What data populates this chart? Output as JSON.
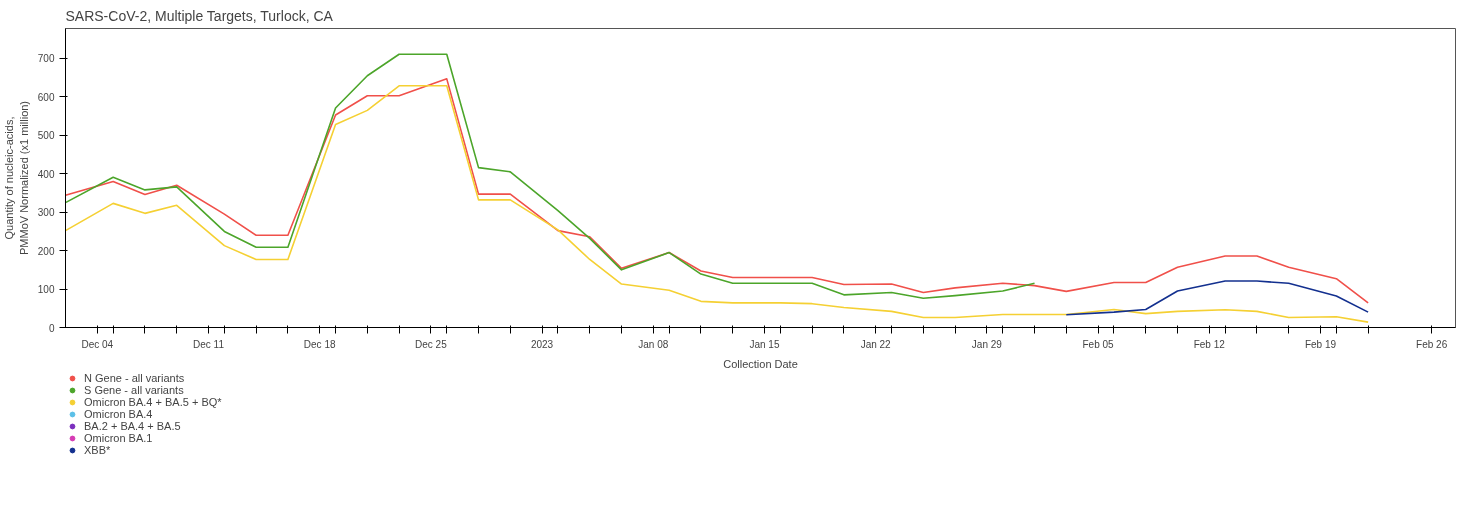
{
  "chart_data": {
    "type": "line",
    "title": "SARS-CoV-2, Multiple Targets, Turlock, CA",
    "xlabel": "Collection Date",
    "ylabel": "Quantity of nucleic-acids,\nPMMoV Normalized (x1 million)",
    "x": [
      "2022-12-02",
      "2022-12-05",
      "2022-12-07",
      "2022-12-09",
      "2022-12-12",
      "2022-12-14",
      "2022-12-16",
      "2022-12-19",
      "2022-12-21",
      "2022-12-23",
      "2022-12-26",
      "2022-12-28",
      "2022-12-30",
      "2023-01-02",
      "2023-01-04",
      "2023-01-06",
      "2023-01-09",
      "2023-01-11",
      "2023-01-13",
      "2023-01-16",
      "2023-01-18",
      "2023-01-20",
      "2023-01-23",
      "2023-01-25",
      "2023-01-27",
      "2023-01-30",
      "2023-02-01",
      "2023-02-03",
      "2023-02-06",
      "2023-02-08",
      "2023-02-10",
      "2023-02-13",
      "2023-02-15",
      "2023-02-17",
      "2023-02-20",
      "2023-02-22"
    ],
    "series": [
      {
        "name": "N Gene - all variants",
        "color": "#f0504a",
        "values": [
          344,
          380,
          346,
          370,
          295,
          240,
          240,
          553,
          603,
          603,
          647,
          347,
          347,
          252,
          236,
          154,
          195,
          147,
          130,
          130,
          130,
          112,
          113,
          91,
          103,
          115,
          109,
          94,
          117,
          117,
          157,
          186,
          186,
          157,
          127,
          64
        ]
      },
      {
        "name": "S Gene - all variants",
        "color": "#4ca52a",
        "values": [
          325,
          391,
          358,
          366,
          250,
          209,
          209,
          571,
          655,
          711,
          711,
          416,
          405,
          304,
          232,
          150,
          195,
          139,
          115,
          115,
          115,
          85,
          91,
          76,
          83,
          95,
          115,
          null,
          null,
          null,
          null,
          null,
          null,
          null,
          null,
          null
        ]
      },
      {
        "name": "Omicron BA.4 + BA.5 + BQ*",
        "color": "#f5d033",
        "values": [
          252,
          323,
          297,
          318,
          213,
          177,
          177,
          528,
          565,
          629,
          629,
          332,
          332,
          254,
          177,
          113,
          97,
          68,
          64,
          64,
          62,
          52,
          42,
          26,
          26,
          34,
          34,
          34,
          47,
          36,
          42,
          46,
          42,
          26,
          28,
          14
        ]
      },
      {
        "name": "Omicron BA.4",
        "color": "#5bc0e8",
        "values": [
          null,
          null,
          null,
          null,
          null,
          null,
          null,
          null,
          null,
          null,
          null,
          null,
          null,
          null,
          null,
          null,
          null,
          null,
          null,
          null,
          null,
          null,
          null,
          null,
          null,
          null,
          null,
          null,
          null,
          null,
          null,
          null,
          null,
          null,
          null,
          null
        ]
      },
      {
        "name": "BA.2 + BA.4 + BA.5",
        "color": "#7b2fbe",
        "values": [
          null,
          null,
          null,
          null,
          null,
          null,
          null,
          null,
          null,
          null,
          null,
          null,
          null,
          null,
          null,
          null,
          null,
          null,
          null,
          null,
          null,
          null,
          null,
          null,
          null,
          null,
          null,
          null,
          null,
          null,
          null,
          null,
          null,
          null,
          null,
          null
        ]
      },
      {
        "name": "Omicron BA.1",
        "color": "#d63cb4",
        "values": [
          null,
          null,
          null,
          null,
          null,
          null,
          null,
          null,
          null,
          null,
          null,
          null,
          null,
          null,
          null,
          null,
          null,
          null,
          null,
          null,
          null,
          null,
          null,
          null,
          null,
          null,
          null,
          null,
          null,
          null,
          null,
          null,
          null,
          null,
          null,
          null
        ]
      },
      {
        "name": "XBB*",
        "color": "#13308f",
        "values": [
          null,
          null,
          null,
          null,
          null,
          null,
          null,
          null,
          null,
          null,
          null,
          null,
          null,
          null,
          null,
          null,
          null,
          null,
          null,
          null,
          null,
          null,
          null,
          null,
          null,
          null,
          null,
          33,
          40,
          47,
          95,
          121,
          121,
          115,
          82,
          40
        ]
      }
    ],
    "xlim": [
      "2022-12-02",
      "2023-02-27T12:00"
    ],
    "xticks": [
      {
        "value": "2022-12-04",
        "label": "Dec 04"
      },
      {
        "value": "2022-12-11",
        "label": "Dec 11"
      },
      {
        "value": "2022-12-18",
        "label": "Dec 18"
      },
      {
        "value": "2022-12-25",
        "label": "Dec 25"
      },
      {
        "value": "2023-01-01",
        "label": "2023"
      },
      {
        "value": "2023-01-08",
        "label": "Jan 08"
      },
      {
        "value": "2023-01-15",
        "label": "Jan 15"
      },
      {
        "value": "2023-01-22",
        "label": "Jan 22"
      },
      {
        "value": "2023-01-29",
        "label": "Jan 29"
      },
      {
        "value": "2023-02-05",
        "label": "Feb 05"
      },
      {
        "value": "2023-02-12",
        "label": "Feb 12"
      },
      {
        "value": "2023-02-19",
        "label": "Feb 19"
      },
      {
        "value": "2023-02-26",
        "label": "Feb 26"
      },
      {
        "value": "2022-12-05",
        "label": null
      },
      {
        "value": "2022-12-07",
        "label": null
      },
      {
        "value": "2022-12-09",
        "label": null
      },
      {
        "value": "2022-12-12",
        "label": null
      },
      {
        "value": "2022-12-14",
        "label": null
      },
      {
        "value": "2022-12-16",
        "label": null
      },
      {
        "value": "2022-12-19",
        "label": null
      },
      {
        "value": "2022-12-21",
        "label": null
      },
      {
        "value": "2022-12-23",
        "label": null
      },
      {
        "value": "2022-12-26",
        "label": null
      },
      {
        "value": "2022-12-28",
        "label": null
      },
      {
        "value": "2022-12-30",
        "label": null
      },
      {
        "value": "2023-01-02",
        "label": null
      },
      {
        "value": "2023-01-04",
        "label": null
      },
      {
        "value": "2023-01-06",
        "label": null
      },
      {
        "value": "2023-01-09",
        "label": null
      },
      {
        "value": "2023-01-11",
        "label": null
      },
      {
        "value": "2023-01-13",
        "label": null
      },
      {
        "value": "2023-01-16",
        "label": null
      },
      {
        "value": "2023-01-18",
        "label": null
      },
      {
        "value": "2023-01-20",
        "label": null
      },
      {
        "value": "2023-01-23",
        "label": null
      },
      {
        "value": "2023-01-25",
        "label": null
      },
      {
        "value": "2023-01-27",
        "label": null
      },
      {
        "value": "2023-01-30",
        "label": null
      },
      {
        "value": "2023-02-01",
        "label": null
      },
      {
        "value": "2023-02-03",
        "label": null
      },
      {
        "value": "2023-02-06",
        "label": null
      },
      {
        "value": "2023-02-08",
        "label": null
      },
      {
        "value": "2023-02-10",
        "label": null
      },
      {
        "value": "2023-02-13",
        "label": null
      },
      {
        "value": "2023-02-15",
        "label": null
      },
      {
        "value": "2023-02-17",
        "label": null
      },
      {
        "value": "2023-02-20",
        "label": null
      },
      {
        "value": "2023-02-22",
        "label": null
      }
    ],
    "ylim": [
      0,
      778
    ],
    "yticks": [
      0,
      100,
      200,
      300,
      400,
      500,
      600,
      700
    ],
    "grid": false,
    "legend": "bottom left",
    "line_style": "solid"
  }
}
